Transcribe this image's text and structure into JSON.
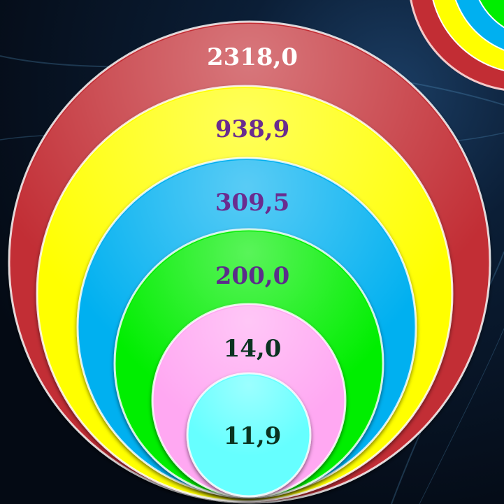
{
  "chart_data": {
    "type": "nested-bubble",
    "title": "",
    "series": [
      {
        "label": "2318,0",
        "value": 2318.0,
        "color": "#c22d34",
        "text_color": "#ffffff"
      },
      {
        "label": "938,9",
        "value": 938.9,
        "color": "#ffff00",
        "text_color": "#6a2c8f"
      },
      {
        "label": "309,5",
        "value": 309.5,
        "color": "#00b0f0",
        "text_color": "#6a2c8f"
      },
      {
        "label": "200,0",
        "value": 200.0,
        "color": "#00ee00",
        "text_color": "#5b2d8a"
      },
      {
        "label": "14,0",
        "value": 14.0,
        "color": "#ffa8f2",
        "text_color": "#0a3320"
      },
      {
        "label": "11,9",
        "value": 11.9,
        "color": "#66ffff",
        "text_color": "#0a3320"
      }
    ]
  }
}
